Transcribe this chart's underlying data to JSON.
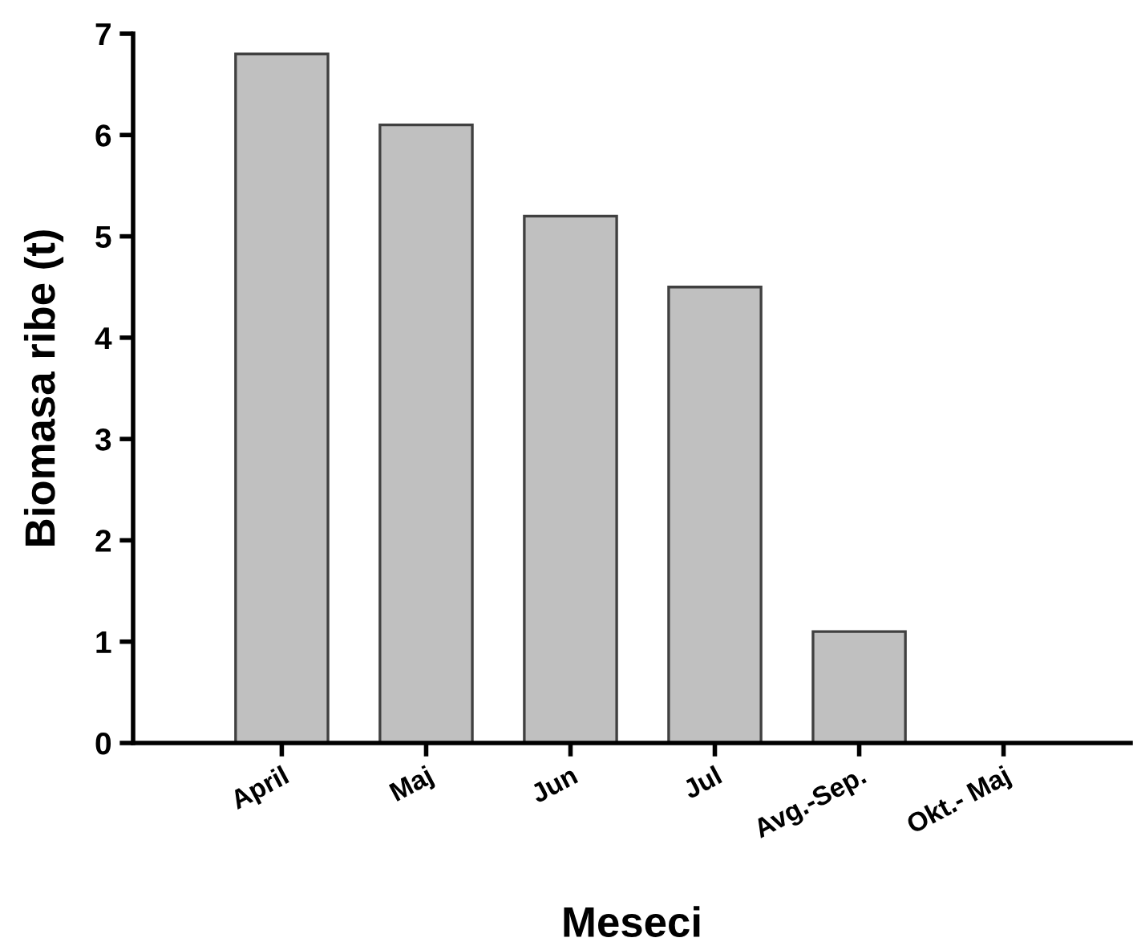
{
  "chart_data": {
    "type": "bar",
    "xlabel": "Meseci",
    "ylabel": "Biomasa ribe (t)",
    "categories": [
      "April",
      "Maj",
      "Jun",
      "Jul",
      "Avg.-Sep.",
      "Okt.- Maj"
    ],
    "values": [
      6.8,
      6.1,
      5.2,
      4.5,
      1.1,
      0
    ],
    "color": "#c0c0c0",
    "ylim": [
      0,
      7
    ],
    "yticks": [
      0,
      1,
      2,
      3,
      4,
      5,
      6,
      7
    ],
    "grid": false,
    "legend": false
  }
}
